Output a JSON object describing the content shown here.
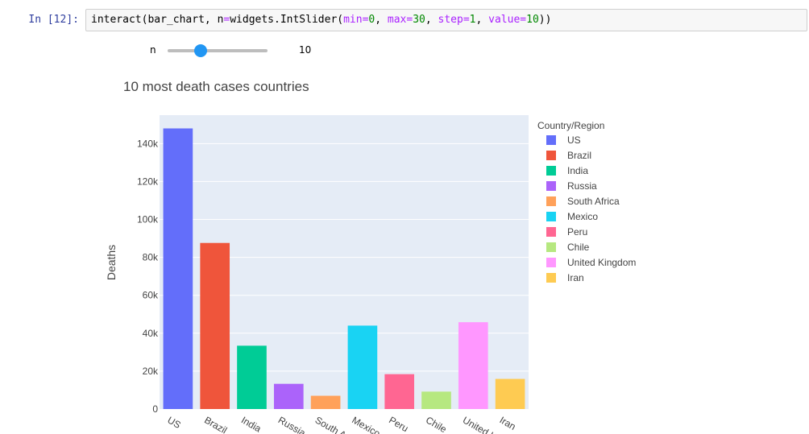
{
  "notebook": {
    "prompt": "In [12]:",
    "code": {
      "fn": "interact",
      "arg1": "bar_chart",
      "param": "n",
      "widget": "widgets.IntSlider",
      "min_kw": "min",
      "min_val": "0",
      "max_kw": "max",
      "max_val": "30",
      "step_kw": "step",
      "step_val": "1",
      "value_kw": "value",
      "value_val": "10"
    }
  },
  "slider": {
    "label": "n",
    "readout": "10",
    "min": 0,
    "max": 30,
    "value": 10
  },
  "colors": {
    "plot_bg": "#e5ecf6",
    "grid": "#ffffff",
    "slider_accent": "#2196f3"
  },
  "chart_data": {
    "type": "bar",
    "title": "10 most death cases countries",
    "xlabel": "",
    "ylabel": "Deaths",
    "legend_title": "Country/Region",
    "legend_position": "right",
    "grid": true,
    "ylim": [
      0,
      155000
    ],
    "yticks": [
      0,
      20000,
      40000,
      60000,
      80000,
      100000,
      120000,
      140000
    ],
    "ytick_labels": [
      "0",
      "20k",
      "40k",
      "60k",
      "80k",
      "100k",
      "120k",
      "140k"
    ],
    "categories": [
      "US",
      "Brazil",
      "India",
      "Russia",
      "South Africa",
      "Mexico",
      "Peru",
      "Chile",
      "United Kingdom",
      "Iran"
    ],
    "tick_labels": [
      "US",
      "Brazil",
      "India",
      "Russia",
      "South A",
      "Mexico",
      "Peru",
      "Chile",
      "United K",
      "Iran"
    ],
    "values": [
      148000,
      87600,
      33400,
      13300,
      7000,
      44000,
      18400,
      9200,
      45800,
      15900
    ],
    "bar_colors": [
      "#636efa",
      "#ef553b",
      "#00cc96",
      "#ab63fa",
      "#ffa15a",
      "#19d3f3",
      "#ff6692",
      "#b6e880",
      "#ff97ff",
      "#fecb52"
    ]
  }
}
